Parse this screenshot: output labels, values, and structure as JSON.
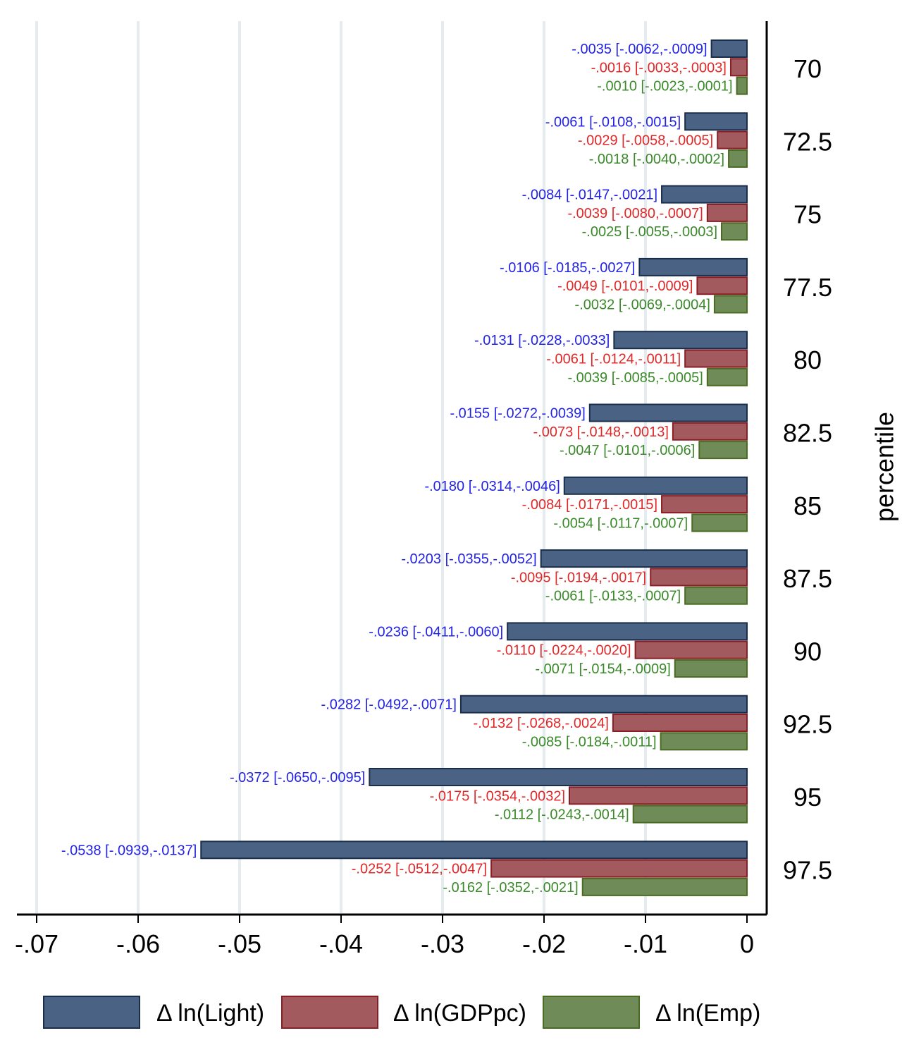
{
  "chart_data": {
    "type": "bar",
    "orientation": "horizontal",
    "ylabel": "percentile",
    "xlabel": "",
    "xlim": [
      -0.07,
      0
    ],
    "xticks": [
      -0.07,
      -0.06,
      -0.05,
      -0.04,
      -0.03,
      -0.02,
      -0.01,
      0
    ],
    "xtick_labels": [
      "-.07",
      "-.06",
      "-.05",
      "-.04",
      "-.03",
      "-.02",
      "-.01",
      "0"
    ],
    "grid": true,
    "legend_position": "bottom",
    "categories": [
      "70",
      "72.5",
      "75",
      "77.5",
      "80",
      "82.5",
      "85",
      "87.5",
      "90",
      "92.5",
      "95",
      "97.5"
    ],
    "series": [
      {
        "name": "Δ ln(Light)",
        "fill": "#4a6385",
        "stroke": "#1a2d4a",
        "text_color": "#2323e6",
        "values": [
          -0.0035,
          -0.0061,
          -0.0084,
          -0.0106,
          -0.0131,
          -0.0155,
          -0.018,
          -0.0203,
          -0.0236,
          -0.0282,
          -0.0372,
          -0.0538
        ],
        "labels": [
          "-.0035 [-.0062,-.0009]",
          "-.0061 [-.0108,-.0015]",
          "-.0084 [-.0147,-.0021]",
          "-.0106 [-.0185,-.0027]",
          "-.0131 [-.0228,-.0033]",
          "-.0155 [-.0272,-.0039]",
          "-.0180 [-.0314,-.0046]",
          "-.0203 [-.0355,-.0052]",
          "-.0236 [-.0411,-.0060]",
          "-.0282 [-.0492,-.0071]",
          "-.0372 [-.0650,-.0095]",
          "-.0538 [-.0939,-.0137]"
        ]
      },
      {
        "name": "Δ ln(GDPpc)",
        "fill": "#a35a5e",
        "stroke": "#8a1e24",
        "text_color": "#e02828",
        "values": [
          -0.0016,
          -0.0029,
          -0.0039,
          -0.0049,
          -0.0061,
          -0.0073,
          -0.0084,
          -0.0095,
          -0.011,
          -0.0132,
          -0.0175,
          -0.0252
        ],
        "labels": [
          "-.0016 [-.0033,-.0003]",
          "-.0029 [-.0058,-.0005]",
          "-.0039 [-.0080,-.0007]",
          "-.0049 [-.0101,-.0009]",
          "-.0061 [-.0124,-.0011]",
          "-.0073 [-.0148,-.0013]",
          "-.0084 [-.0171,-.0015]",
          "-.0095 [-.0194,-.0017]",
          "-.0110 [-.0224,-.0020]",
          "-.0132 [-.0268,-.0024]",
          "-.0175 [-.0354,-.0032]",
          "-.0252 [-.0512,-.0047]"
        ]
      },
      {
        "name": "Δ ln(Emp)",
        "fill": "#6f8b57",
        "stroke": "#4a6b22",
        "text_color": "#3a8a2a",
        "values": [
          -0.001,
          -0.0018,
          -0.0025,
          -0.0032,
          -0.0039,
          -0.0047,
          -0.0054,
          -0.0061,
          -0.0071,
          -0.0085,
          -0.0112,
          -0.0162
        ],
        "labels": [
          "-.0010 [-.0023,-.0001]",
          "-.0018 [-.0040,-.0002]",
          "-.0025 [-.0055,-.0003]",
          "-.0032 [-.0069,-.0004]",
          "-.0039 [-.0085,-.0005]",
          "-.0047 [-.0101,-.0006]",
          "-.0054 [-.0117,-.0007]",
          "-.0061 [-.0133,-.0007]",
          "-.0071 [-.0154,-.0009]",
          "-.0085 [-.0184,-.0011]",
          "-.0112 [-.0243,-.0014]",
          "-.0162 [-.0352,-.0021]"
        ]
      }
    ]
  }
}
